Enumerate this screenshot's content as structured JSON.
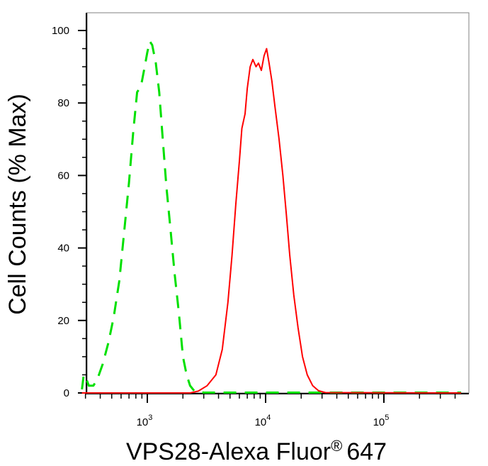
{
  "chart_data": {
    "type": "line",
    "xlabel": "VPS28-Alexa Fluor",
    "xlabel_mark": "®",
    "xlabel_suffix": "647",
    "ylabel": "Cell Counts (% Max)",
    "x_scale": "log",
    "xlim": [
      280,
      450000
    ],
    "ylim": [
      0,
      100
    ],
    "yticks": [
      0,
      20,
      40,
      60,
      80,
      100
    ],
    "xticks": [
      {
        "value": 1000,
        "base": "10",
        "exp": "3"
      },
      {
        "value": 10000,
        "base": "10",
        "exp": "4"
      },
      {
        "value": 100000,
        "base": "10",
        "exp": "5"
      }
    ],
    "grid": false,
    "legend": "none",
    "series": [
      {
        "color": "#00e000",
        "style": "dashed",
        "points": [
          [
            280,
            1
          ],
          [
            290,
            5
          ],
          [
            300,
            4.5
          ],
          [
            320,
            2
          ],
          [
            350,
            2
          ],
          [
            380,
            4
          ],
          [
            420,
            8
          ],
          [
            470,
            14
          ],
          [
            520,
            21
          ],
          [
            580,
            31
          ],
          [
            640,
            45
          ],
          [
            700,
            58
          ],
          [
            760,
            72
          ],
          [
            820,
            83
          ],
          [
            860,
            84
          ],
          [
            900,
            86
          ],
          [
            950,
            90
          ],
          [
            1000,
            94
          ],
          [
            1050,
            97
          ],
          [
            1100,
            96
          ],
          [
            1180,
            91
          ],
          [
            1260,
            83
          ],
          [
            1350,
            70
          ],
          [
            1450,
            57
          ],
          [
            1560,
            46
          ],
          [
            1700,
            33
          ],
          [
            1850,
            22
          ],
          [
            2000,
            10
          ],
          [
            2150,
            5
          ],
          [
            2300,
            2
          ],
          [
            2500,
            0.5
          ],
          [
            3000,
            0.1
          ],
          [
            450000,
            0.1
          ]
        ]
      },
      {
        "color": "#ff0000",
        "style": "solid",
        "points": [
          [
            280,
            0
          ],
          [
            2300,
            0
          ],
          [
            2700,
            0.5
          ],
          [
            3200,
            2
          ],
          [
            3800,
            5
          ],
          [
            4300,
            12
          ],
          [
            4800,
            25
          ],
          [
            5200,
            38
          ],
          [
            5600,
            52
          ],
          [
            6000,
            64
          ],
          [
            6300,
            73
          ],
          [
            6700,
            77
          ],
          [
            7000,
            84
          ],
          [
            7400,
            90
          ],
          [
            7800,
            92
          ],
          [
            8300,
            90
          ],
          [
            8700,
            91
          ],
          [
            9200,
            89
          ],
          [
            9700,
            93
          ],
          [
            10200,
            95
          ],
          [
            10700,
            91
          ],
          [
            11300,
            86
          ],
          [
            12000,
            79
          ],
          [
            13000,
            70
          ],
          [
            14000,
            60
          ],
          [
            15000,
            49
          ],
          [
            16000,
            38
          ],
          [
            17300,
            27
          ],
          [
            18800,
            18
          ],
          [
            20500,
            10
          ],
          [
            22500,
            5
          ],
          [
            25000,
            2
          ],
          [
            28000,
            0.6
          ],
          [
            32000,
            0.1
          ],
          [
            450000,
            0
          ]
        ]
      }
    ]
  }
}
